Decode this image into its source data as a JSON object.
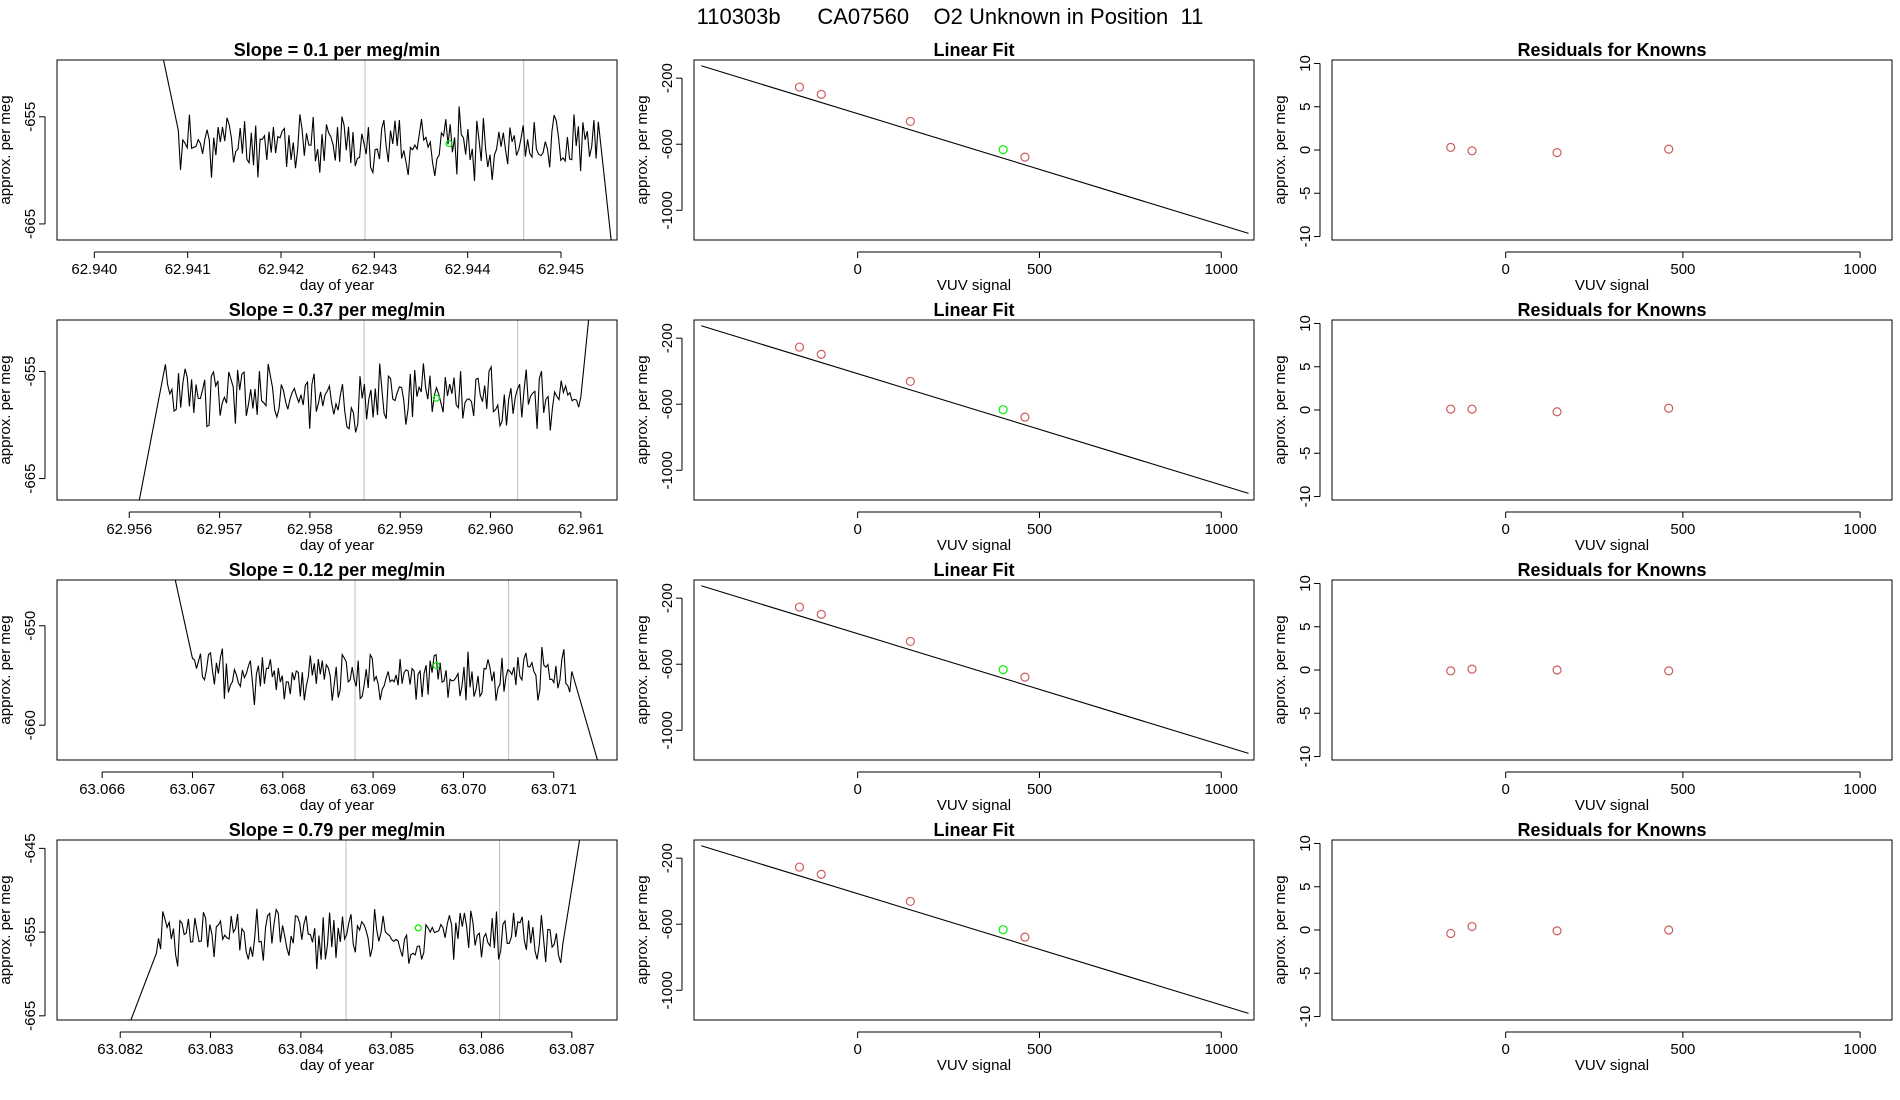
{
  "figure_title": "110303b      CA07560    O2 Unknown in Position  11",
  "chart_data": [
    {
      "type": "line",
      "panel": "trace",
      "title": "Slope =  0.1  per meg/min",
      "xlabel": "day of year",
      "ylabel": "approx. per meg",
      "xlim": [
        62.9396,
        62.9456
      ],
      "ylim": [
        -666.5,
        -649.7
      ],
      "xticks": [
        62.94,
        62.941,
        62.942,
        62.943,
        62.944,
        62.945
      ],
      "xtick_labels": [
        "62.940",
        "62.941",
        "62.942",
        "62.943",
        "62.944",
        "62.945"
      ],
      "yticks": [
        -655,
        -665
      ],
      "ytick_labels": [
        "-655",
        "-665"
      ],
      "vlines": [
        62.9429,
        62.9446
      ],
      "marker": {
        "x": 62.9438,
        "y": -657.5
      },
      "start": {
        "x": 62.9407,
        "y": -648.0
      },
      "plateau": {
        "x0": 62.9409,
        "x1": 62.9454,
        "level": -657.5,
        "amp": 2.2
      },
      "end": {
        "x": 62.94555,
        "y": -667.5
      },
      "seed": 11
    },
    {
      "type": "line",
      "panel": "trace",
      "title": "Slope =  0.37  per meg/min",
      "xlabel": "day of year",
      "ylabel": "approx. per meg",
      "xlim": [
        62.9552,
        62.9614
      ],
      "ylim": [
        -667.0,
        -650.2
      ],
      "xticks": [
        62.956,
        62.957,
        62.958,
        62.959,
        62.96,
        62.961
      ],
      "xtick_labels": [
        "62.956",
        "62.957",
        "62.958",
        "62.959",
        "62.960",
        "62.961"
      ],
      "yticks": [
        -655,
        -665
      ],
      "ytick_labels": [
        "-655",
        "-665"
      ],
      "vlines": [
        62.9586,
        62.9603
      ],
      "marker": {
        "x": 62.9594,
        "y": -657.5
      },
      "start": {
        "x": 62.9561,
        "y": -667.5
      },
      "plateau": {
        "x0": 62.9564,
        "x1": 62.961,
        "level": -657.3,
        "amp": 2.3
      },
      "end": {
        "x": 62.9611,
        "y": -649.0
      },
      "seed": 23
    },
    {
      "type": "line",
      "panel": "trace",
      "title": "Slope =  0.12  per meg/min",
      "xlabel": "day of year",
      "ylabel": "approx. per meg",
      "xlim": [
        63.0655,
        63.0717
      ],
      "ylim": [
        -663.5,
        -645.4
      ],
      "xticks": [
        63.066,
        63.067,
        63.068,
        63.069,
        63.07,
        63.071
      ],
      "xtick_labels": [
        "63.066",
        "63.067",
        "63.068",
        "63.069",
        "63.070",
        "63.071"
      ],
      "yticks": [
        -650,
        -660
      ],
      "ytick_labels": [
        "-650",
        "-660"
      ],
      "vlines": [
        63.0688,
        63.0705
      ],
      "marker": {
        "x": 63.0697,
        "y": -654.0
      },
      "start": {
        "x": 63.0668,
        "y": -645.0
      },
      "plateau": {
        "x0": 63.067,
        "x1": 63.0712,
        "level": -655.0,
        "amp": 2.0
      },
      "end": {
        "x": 63.0715,
        "y": -664.0
      },
      "seed": 37
    },
    {
      "type": "line",
      "panel": "trace",
      "title": "Slope =  0.79  per meg/min",
      "xlabel": "day of year",
      "ylabel": "approx. per meg",
      "xlim": [
        63.0813,
        63.0875
      ],
      "ylim": [
        -665.5,
        -644.0
      ],
      "xticks": [
        63.082,
        63.083,
        63.084,
        63.085,
        63.086,
        63.087
      ],
      "xtick_labels": [
        "63.082",
        "63.083",
        "63.084",
        "63.085",
        "63.086",
        "63.087"
      ],
      "yticks": [
        -645,
        -655,
        -665
      ],
      "ytick_labels": [
        "-645",
        "-655",
        "-665"
      ],
      "vlines": [
        63.0845,
        63.0862
      ],
      "marker": {
        "x": 63.0853,
        "y": -654.5
      },
      "start": {
        "x": 63.0821,
        "y": -666.0
      },
      "plateau": {
        "x0": 63.0824,
        "x1": 63.0869,
        "level": -655.5,
        "amp": 2.6
      },
      "end": {
        "x": 63.0871,
        "y": -643.0
      },
      "seed": 51
    },
    {
      "type": "scatter",
      "panel": "fit",
      "title": "Linear Fit",
      "xlabel": "VUV signal",
      "ylabel": "approx. per meg",
      "xlim": [
        -450,
        1090
      ],
      "ylim": [
        -1180,
        -90
      ],
      "xticks": [
        0,
        500,
        1000
      ],
      "xtick_labels": [
        "0",
        "500",
        "1000"
      ],
      "yticks": [
        -200,
        -600,
        -1000
      ],
      "ytick_labels": [
        "-200",
        "-600",
        "-1000"
      ],
      "knowns": [
        {
          "x": -160,
          "y": -254
        },
        {
          "x": -100,
          "y": -298
        },
        {
          "x": 145,
          "y": -462
        },
        {
          "x": 460,
          "y": -678
        }
      ],
      "unknown": {
        "x": 400,
        "y": -633
      },
      "fit_line": [
        {
          "x": -430,
          "y": -125
        },
        {
          "x": 1075,
          "y": -1140
        }
      ]
    },
    {
      "type": "scatter",
      "panel": "fit",
      "title": "Linear Fit",
      "xlabel": "VUV signal",
      "ylabel": "approx. per meg",
      "xlim": [
        -450,
        1090
      ],
      "ylim": [
        -1180,
        -90
      ],
      "xticks": [
        0,
        500,
        1000
      ],
      "xtick_labels": [
        "0",
        "500",
        "1000"
      ],
      "yticks": [
        -200,
        -600,
        -1000
      ],
      "ytick_labels": [
        "-200",
        "-600",
        "-1000"
      ],
      "knowns": [
        {
          "x": -160,
          "y": -254
        },
        {
          "x": -100,
          "y": -298
        },
        {
          "x": 145,
          "y": -462
        },
        {
          "x": 460,
          "y": -678
        }
      ],
      "unknown": {
        "x": 400,
        "y": -633
      },
      "fit_line": [
        {
          "x": -430,
          "y": -125
        },
        {
          "x": 1075,
          "y": -1140
        }
      ]
    },
    {
      "type": "scatter",
      "panel": "fit",
      "title": "Linear Fit",
      "xlabel": "VUV signal",
      "ylabel": "approx. per meg",
      "xlim": [
        -450,
        1090
      ],
      "ylim": [
        -1180,
        -90
      ],
      "xticks": [
        0,
        500,
        1000
      ],
      "xtick_labels": [
        "0",
        "500",
        "1000"
      ],
      "yticks": [
        -200,
        -600,
        -1000
      ],
      "ytick_labels": [
        "-200",
        "-600",
        "-1000"
      ],
      "knowns": [
        {
          "x": -160,
          "y": -254
        },
        {
          "x": -100,
          "y": -298
        },
        {
          "x": 145,
          "y": -462
        },
        {
          "x": 460,
          "y": -678
        }
      ],
      "unknown": {
        "x": 400,
        "y": -633
      },
      "fit_line": [
        {
          "x": -430,
          "y": -125
        },
        {
          "x": 1075,
          "y": -1140
        }
      ]
    },
    {
      "type": "scatter",
      "panel": "fit",
      "title": "Linear Fit",
      "xlabel": "VUV signal",
      "ylabel": "approx. per meg",
      "xlim": [
        -450,
        1090
      ],
      "ylim": [
        -1180,
        -90
      ],
      "xticks": [
        0,
        500,
        1000
      ],
      "xtick_labels": [
        "0",
        "500",
        "1000"
      ],
      "yticks": [
        -200,
        -600,
        -1000
      ],
      "ytick_labels": [
        "-200",
        "-600",
        "-1000"
      ],
      "knowns": [
        {
          "x": -160,
          "y": -254
        },
        {
          "x": -100,
          "y": -298
        },
        {
          "x": 145,
          "y": -462
        },
        {
          "x": 460,
          "y": -678
        }
      ],
      "unknown": {
        "x": 400,
        "y": -633
      },
      "fit_line": [
        {
          "x": -430,
          "y": -125
        },
        {
          "x": 1075,
          "y": -1140
        }
      ]
    },
    {
      "type": "scatter",
      "panel": "resid",
      "title": "Residuals for Knowns",
      "xlabel": "VUV signal",
      "ylabel": "approx. per meg",
      "xlim": [
        -490,
        1090
      ],
      "ylim": [
        -10.4,
        10.4
      ],
      "xticks": [
        0,
        500,
        1000
      ],
      "xtick_labels": [
        "0",
        "500",
        "1000"
      ],
      "yticks": [
        10,
        5,
        0,
        -5,
        -10
      ],
      "ytick_labels": [
        "10",
        "5",
        "0",
        "-5",
        "-10"
      ],
      "points": [
        {
          "x": -155,
          "y": 0.3
        },
        {
          "x": -95,
          "y": -0.1
        },
        {
          "x": 145,
          "y": -0.3
        },
        {
          "x": 460,
          "y": 0.1
        }
      ]
    },
    {
      "type": "scatter",
      "panel": "resid",
      "title": "Residuals for Knowns",
      "xlabel": "VUV signal",
      "ylabel": "approx. per meg",
      "xlim": [
        -490,
        1090
      ],
      "ylim": [
        -10.4,
        10.4
      ],
      "xticks": [
        0,
        500,
        1000
      ],
      "xtick_labels": [
        "0",
        "500",
        "1000"
      ],
      "yticks": [
        10,
        5,
        0,
        -5,
        -10
      ],
      "ytick_labels": [
        "10",
        "5",
        "0",
        "-5",
        "-10"
      ],
      "points": [
        {
          "x": -155,
          "y": 0.1
        },
        {
          "x": -95,
          "y": 0.1
        },
        {
          "x": 145,
          "y": -0.2
        },
        {
          "x": 460,
          "y": 0.2
        }
      ]
    },
    {
      "type": "scatter",
      "panel": "resid",
      "title": "Residuals for Knowns",
      "xlabel": "VUV signal",
      "ylabel": "approx. per meg",
      "xlim": [
        -490,
        1090
      ],
      "ylim": [
        -10.4,
        10.4
      ],
      "xticks": [
        0,
        500,
        1000
      ],
      "xtick_labels": [
        "0",
        "500",
        "1000"
      ],
      "yticks": [
        10,
        5,
        0,
        -5,
        -10
      ],
      "ytick_labels": [
        "10",
        "5",
        "0",
        "-5",
        "-10"
      ],
      "points": [
        {
          "x": -155,
          "y": -0.1
        },
        {
          "x": -95,
          "y": 0.1
        },
        {
          "x": 145,
          "y": 0.0
        },
        {
          "x": 460,
          "y": -0.1
        }
      ]
    },
    {
      "type": "scatter",
      "panel": "resid",
      "title": "Residuals for Knowns",
      "xlabel": "VUV signal",
      "ylabel": "approx. per meg",
      "xlim": [
        -490,
        1090
      ],
      "ylim": [
        -10.4,
        10.4
      ],
      "xticks": [
        0,
        500,
        1000
      ],
      "xtick_labels": [
        "0",
        "500",
        "1000"
      ],
      "yticks": [
        10,
        5,
        0,
        -5,
        -10
      ],
      "ytick_labels": [
        "10",
        "5",
        "0",
        "-5",
        "-10"
      ],
      "points": [
        {
          "x": -155,
          "y": -0.4
        },
        {
          "x": -95,
          "y": 0.4
        },
        {
          "x": 145,
          "y": -0.1
        },
        {
          "x": 460,
          "y": 0.0
        }
      ]
    }
  ],
  "colors": {
    "axis": "#000000",
    "trace": "#000000",
    "vline": "#bebebe",
    "known": "#cd5c5c",
    "unknown": "#00ee00"
  }
}
